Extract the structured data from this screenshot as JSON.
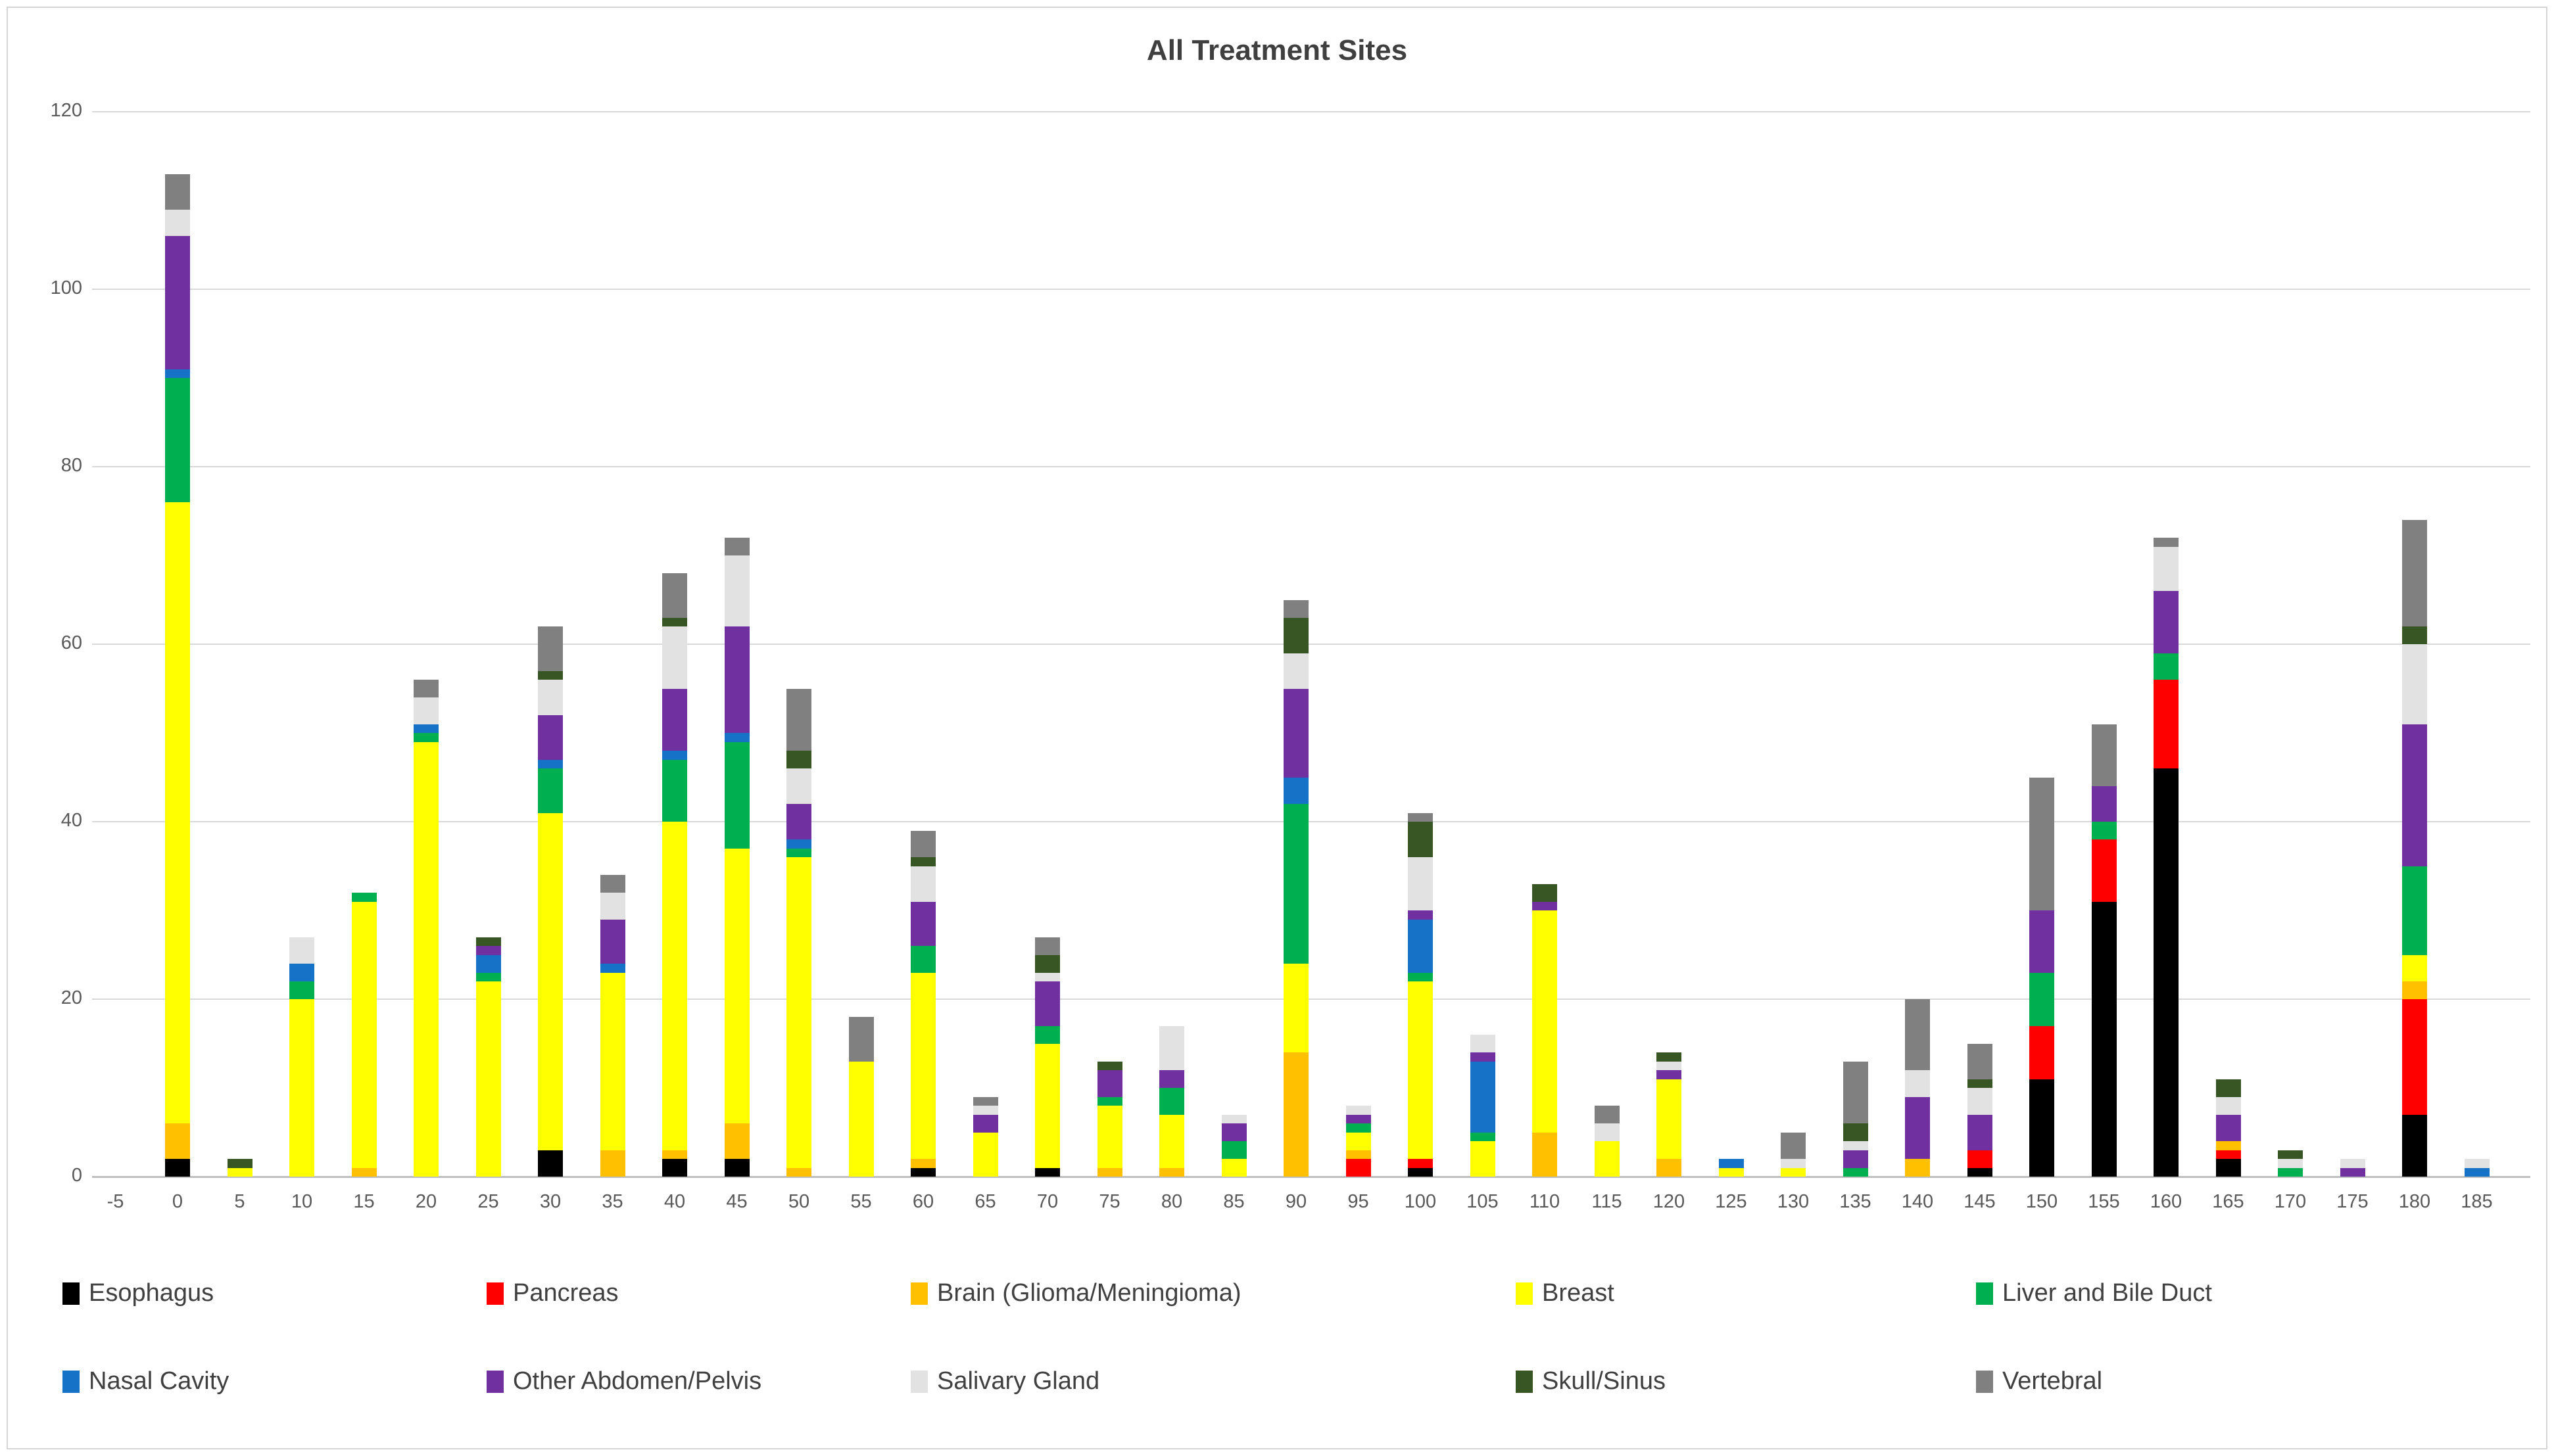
{
  "chart_data": {
    "type": "bar",
    "stacked": true,
    "title": "All Treatment Sites",
    "xlabel": "",
    "ylabel": "",
    "ylim": [
      0,
      120
    ],
    "yticks": [
      0,
      20,
      40,
      60,
      80,
      100,
      120
    ],
    "grid": "horizontal",
    "legend_position": "bottom",
    "categories": [
      "-5",
      "0",
      "5",
      "10",
      "15",
      "20",
      "25",
      "30",
      "35",
      "40",
      "45",
      "50",
      "55",
      "60",
      "65",
      "70",
      "75",
      "80",
      "85",
      "90",
      "95",
      "100",
      "105",
      "110",
      "115",
      "120",
      "125",
      "130",
      "135",
      "140",
      "145",
      "150",
      "155",
      "160",
      "165",
      "170",
      "175",
      "180",
      "185"
    ],
    "series": [
      {
        "name": "Esophagus",
        "color": "#000000",
        "values": [
          0,
          2,
          0,
          0,
          0,
          0,
          0,
          3,
          0,
          2,
          2,
          0,
          0,
          1,
          0,
          1,
          0,
          0,
          0,
          0,
          0,
          1,
          0,
          0,
          0,
          0,
          0,
          0,
          0,
          0,
          1,
          11,
          31,
          46,
          2,
          0,
          0,
          7,
          0
        ]
      },
      {
        "name": "Pancreas",
        "color": "#ff0000",
        "values": [
          0,
          0,
          0,
          0,
          0,
          0,
          0,
          0,
          0,
          0,
          0,
          0,
          0,
          0,
          0,
          0,
          0,
          0,
          0,
          0,
          2,
          1,
          0,
          0,
          0,
          0,
          0,
          0,
          0,
          0,
          2,
          6,
          7,
          10,
          1,
          0,
          0,
          13,
          0
        ]
      },
      {
        "name": "Brain (Glioma/Meningioma)",
        "color": "#ffc000",
        "values": [
          0,
          4,
          0,
          0,
          1,
          0,
          0,
          0,
          3,
          1,
          4,
          1,
          0,
          1,
          0,
          0,
          1,
          1,
          0,
          14,
          1,
          0,
          0,
          5,
          0,
          2,
          0,
          0,
          0,
          2,
          0,
          0,
          0,
          0,
          1,
          0,
          0,
          2,
          0
        ]
      },
      {
        "name": "Breast",
        "color": "#ffff00",
        "values": [
          0,
          70,
          1,
          20,
          30,
          49,
          22,
          38,
          20,
          37,
          31,
          35,
          13,
          21,
          5,
          14,
          7,
          6,
          2,
          10,
          2,
          20,
          4,
          25,
          4,
          9,
          1,
          1,
          0,
          0,
          0,
          0,
          0,
          0,
          0,
          0,
          0,
          3,
          0
        ]
      },
      {
        "name": "Liver and Bile Duct",
        "color": "#00b050",
        "values": [
          0,
          14,
          0,
          2,
          1,
          1,
          1,
          5,
          0,
          7,
          12,
          1,
          0,
          3,
          0,
          2,
          1,
          3,
          2,
          18,
          1,
          1,
          1,
          0,
          0,
          0,
          0,
          0,
          1,
          0,
          0,
          6,
          2,
          3,
          0,
          1,
          0,
          10,
          0
        ]
      },
      {
        "name": "Nasal Cavity",
        "color": "#1572c6",
        "values": [
          0,
          1,
          0,
          2,
          0,
          1,
          2,
          1,
          1,
          1,
          1,
          1,
          0,
          0,
          0,
          0,
          0,
          0,
          0,
          3,
          0,
          6,
          8,
          0,
          0,
          0,
          1,
          0,
          0,
          0,
          0,
          0,
          0,
          0,
          0,
          0,
          0,
          0,
          1
        ]
      },
      {
        "name": "Other Abdomen/Pelvis",
        "color": "#7030a0",
        "values": [
          0,
          15,
          0,
          0,
          0,
          0,
          1,
          5,
          5,
          7,
          12,
          4,
          0,
          5,
          2,
          5,
          3,
          2,
          2,
          10,
          1,
          1,
          1,
          1,
          0,
          1,
          0,
          0,
          2,
          7,
          4,
          7,
          4,
          7,
          3,
          0,
          1,
          16,
          0
        ]
      },
      {
        "name": "Salivary Gland",
        "color": "#e2e2e2",
        "values": [
          0,
          3,
          0,
          3,
          0,
          3,
          0,
          4,
          3,
          7,
          8,
          4,
          0,
          4,
          1,
          1,
          0,
          5,
          1,
          4,
          1,
          6,
          2,
          0,
          2,
          1,
          0,
          1,
          1,
          3,
          3,
          0,
          0,
          5,
          2,
          1,
          1,
          9,
          1
        ]
      },
      {
        "name": "Skull/Sinus",
        "color": "#375623",
        "values": [
          0,
          0,
          1,
          0,
          0,
          0,
          1,
          1,
          0,
          1,
          0,
          2,
          0,
          1,
          0,
          2,
          1,
          0,
          0,
          4,
          0,
          4,
          0,
          2,
          0,
          1,
          0,
          0,
          2,
          0,
          1,
          0,
          0,
          0,
          2,
          1,
          0,
          2,
          0
        ]
      },
      {
        "name": "Vertebral",
        "color": "#808080",
        "values": [
          0,
          4,
          0,
          0,
          0,
          2,
          0,
          5,
          2,
          5,
          2,
          7,
          5,
          3,
          1,
          2,
          0,
          0,
          0,
          2,
          0,
          1,
          0,
          0,
          2,
          0,
          0,
          3,
          7,
          8,
          4,
          15,
          7,
          1,
          0,
          0,
          0,
          12,
          0
        ]
      }
    ],
    "legend_rows": [
      [
        "Esophagus",
        "Pancreas",
        "Brain (Glioma/Meningioma)",
        "Breast",
        "Liver and Bile Duct"
      ],
      [
        "Nasal Cavity",
        "Other Abdomen/Pelvis",
        "Salivary Gland",
        "Skull/Sinus",
        "Vertebral"
      ]
    ]
  }
}
